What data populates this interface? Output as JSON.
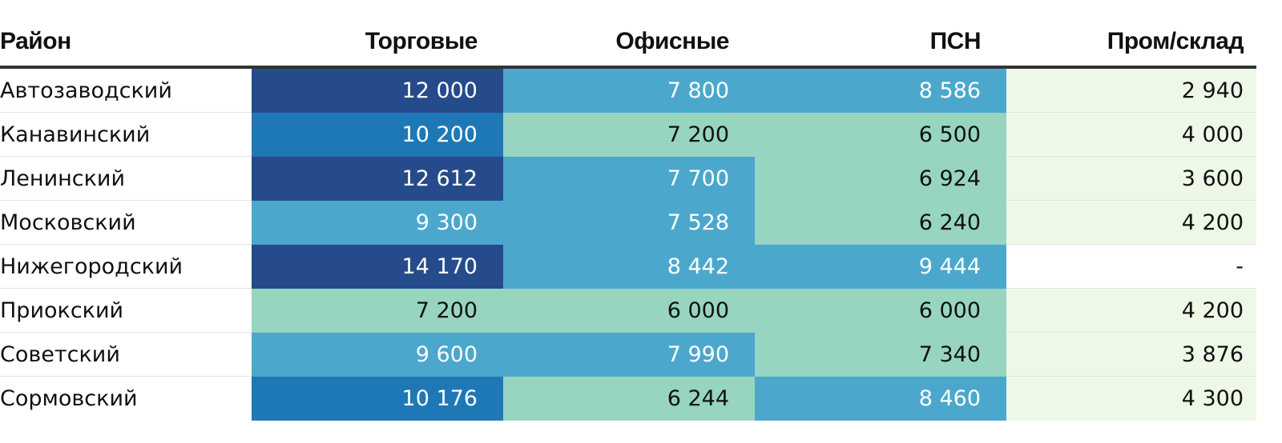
{
  "chart_data": {
    "type": "table",
    "columns": [
      "Район",
      "Торговые",
      "Офисные",
      "ПСН",
      "Пром/склад"
    ],
    "rows": [
      {
        "district": "Автозаводский",
        "cells": [
          {
            "text": "12 000",
            "value": 12000,
            "bg": "#254b8c",
            "fg": "#ffffff"
          },
          {
            "text": "7 800",
            "value": 7800,
            "bg": "#4ba8cc",
            "fg": "#ffffff"
          },
          {
            "text": "8 586",
            "value": 8586,
            "bg": "#4ba8cc",
            "fg": "#ffffff"
          },
          {
            "text": "2 940",
            "value": 2940,
            "bg": "#eef8e6",
            "fg": "#111111"
          }
        ]
      },
      {
        "district": "Канавинский",
        "cells": [
          {
            "text": "10 200",
            "value": 10200,
            "bg": "#1f78b6",
            "fg": "#ffffff"
          },
          {
            "text": "7 200",
            "value": 7200,
            "bg": "#97d5c0",
            "fg": "#111111"
          },
          {
            "text": "6 500",
            "value": 6500,
            "bg": "#97d5c0",
            "fg": "#111111"
          },
          {
            "text": "4 000",
            "value": 4000,
            "bg": "#eef8e6",
            "fg": "#111111"
          }
        ]
      },
      {
        "district": "Ленинский",
        "cells": [
          {
            "text": "12 612",
            "value": 12612,
            "bg": "#254b8c",
            "fg": "#ffffff"
          },
          {
            "text": "7 700",
            "value": 7700,
            "bg": "#4ba8cc",
            "fg": "#ffffff"
          },
          {
            "text": "6 924",
            "value": 6924,
            "bg": "#97d5c0",
            "fg": "#111111"
          },
          {
            "text": "3 600",
            "value": 3600,
            "bg": "#eef8e6",
            "fg": "#111111"
          }
        ]
      },
      {
        "district": "Московский",
        "cells": [
          {
            "text": "9 300",
            "value": 9300,
            "bg": "#4ba8cc",
            "fg": "#ffffff"
          },
          {
            "text": "7 528",
            "value": 7528,
            "bg": "#4ba8cc",
            "fg": "#ffffff"
          },
          {
            "text": "6 240",
            "value": 6240,
            "bg": "#97d5c0",
            "fg": "#111111"
          },
          {
            "text": "4 200",
            "value": 4200,
            "bg": "#eef8e6",
            "fg": "#111111"
          }
        ]
      },
      {
        "district": "Нижегородский",
        "cells": [
          {
            "text": "14 170",
            "value": 14170,
            "bg": "#254b8c",
            "fg": "#ffffff"
          },
          {
            "text": "8 442",
            "value": 8442,
            "bg": "#4ba8cc",
            "fg": "#ffffff"
          },
          {
            "text": "9 444",
            "value": 9444,
            "bg": "#4ba8cc",
            "fg": "#ffffff"
          },
          {
            "text": "-",
            "value": null,
            "bg": "#ffffff",
            "fg": "#111111"
          }
        ]
      },
      {
        "district": "Приокский",
        "cells": [
          {
            "text": "7 200",
            "value": 7200,
            "bg": "#97d5c0",
            "fg": "#111111"
          },
          {
            "text": "6 000",
            "value": 6000,
            "bg": "#97d5c0",
            "fg": "#111111"
          },
          {
            "text": "6 000",
            "value": 6000,
            "bg": "#97d5c0",
            "fg": "#111111"
          },
          {
            "text": "4 200",
            "value": 4200,
            "bg": "#eef8e6",
            "fg": "#111111"
          }
        ]
      },
      {
        "district": "Советский",
        "cells": [
          {
            "text": "9 600",
            "value": 9600,
            "bg": "#4ba8cc",
            "fg": "#ffffff"
          },
          {
            "text": "7 990",
            "value": 7990,
            "bg": "#4ba8cc",
            "fg": "#ffffff"
          },
          {
            "text": "7 340",
            "value": 7340,
            "bg": "#97d5c0",
            "fg": "#111111"
          },
          {
            "text": "3 876",
            "value": 3876,
            "bg": "#eef8e6",
            "fg": "#111111"
          }
        ]
      },
      {
        "district": "Сормовский",
        "cells": [
          {
            "text": "10 176",
            "value": 10176,
            "bg": "#1f78b6",
            "fg": "#ffffff"
          },
          {
            "text": "6 244",
            "value": 6244,
            "bg": "#97d5c0",
            "fg": "#111111"
          },
          {
            "text": "8 460",
            "value": 8460,
            "bg": "#4ba8cc",
            "fg": "#ffffff"
          },
          {
            "text": "4 300",
            "value": 4300,
            "bg": "#eef8e6",
            "fg": "#111111"
          }
        ]
      }
    ]
  }
}
